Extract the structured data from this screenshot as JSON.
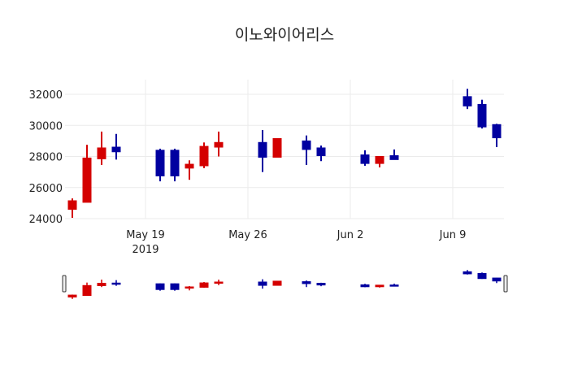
{
  "chart_data": {
    "type": "candlestick",
    "title": "이노와이어리스",
    "increasing_color": "#d40000",
    "decreasing_color": "#0000a0",
    "ylim": [
      24000,
      33000
    ],
    "yticks": [
      24000,
      26000,
      28000,
      30000,
      32000
    ],
    "ytick_labels": [
      "24000",
      "26000",
      "28000",
      "30000",
      "32000"
    ],
    "xlim": [
      "2019-05-13T12:00",
      "2019-06-12T12:00"
    ],
    "xticks": [
      {
        "date": "2019-05-19",
        "label": "May 19",
        "sublabel": "2019"
      },
      {
        "date": "2019-05-26",
        "label": "May 26"
      },
      {
        "date": "2019-06-02",
        "label": "Jun 2"
      },
      {
        "date": "2019-06-09",
        "label": "Jun 9"
      }
    ],
    "grid": true,
    "rangeslider": true,
    "data": [
      {
        "date": "2019-05-14",
        "open": 24600,
        "high": 25300,
        "low": 24050,
        "close": 25150
      },
      {
        "date": "2019-05-15",
        "open": 25050,
        "high": 28750,
        "low": 25050,
        "close": 27900
      },
      {
        "date": "2019-05-16",
        "open": 27850,
        "high": 29600,
        "low": 27450,
        "close": 28550
      },
      {
        "date": "2019-05-17",
        "open": 28600,
        "high": 29450,
        "low": 27800,
        "close": 28300
      },
      {
        "date": "2019-05-20",
        "open": 28400,
        "high": 28500,
        "low": 26400,
        "close": 26750
      },
      {
        "date": "2019-05-21",
        "open": 28400,
        "high": 28500,
        "low": 26400,
        "close": 26750
      },
      {
        "date": "2019-05-22",
        "open": 27250,
        "high": 27750,
        "low": 26500,
        "close": 27500
      },
      {
        "date": "2019-05-23",
        "open": 27400,
        "high": 28900,
        "low": 27250,
        "close": 28650
      },
      {
        "date": "2019-05-24",
        "open": 28600,
        "high": 29600,
        "low": 28000,
        "close": 28900
      },
      {
        "date": "2019-05-27",
        "open": 28900,
        "high": 29700,
        "low": 27000,
        "close": 27950
      },
      {
        "date": "2019-05-28",
        "open": 27950,
        "high": 29150,
        "low": 27950,
        "close": 29150
      },
      {
        "date": "2019-05-30",
        "open": 29000,
        "high": 29350,
        "low": 27450,
        "close": 28450
      },
      {
        "date": "2019-05-31",
        "open": 28550,
        "high": 28700,
        "low": 27700,
        "close": 28050
      },
      {
        "date": "2019-06-03",
        "open": 28100,
        "high": 28400,
        "low": 27400,
        "close": 27550
      },
      {
        "date": "2019-06-04",
        "open": 27550,
        "high": 28000,
        "low": 27300,
        "close": 28000
      },
      {
        "date": "2019-06-05",
        "open": 28050,
        "high": 28450,
        "low": 27800,
        "close": 27800
      },
      {
        "date": "2019-06-10",
        "open": 31850,
        "high": 32350,
        "low": 31050,
        "close": 31250
      },
      {
        "date": "2019-06-11",
        "open": 31350,
        "high": 31650,
        "low": 29800,
        "close": 29900
      },
      {
        "date": "2019-06-12",
        "open": 30050,
        "high": 30100,
        "low": 28600,
        "close": 29200
      }
    ]
  }
}
